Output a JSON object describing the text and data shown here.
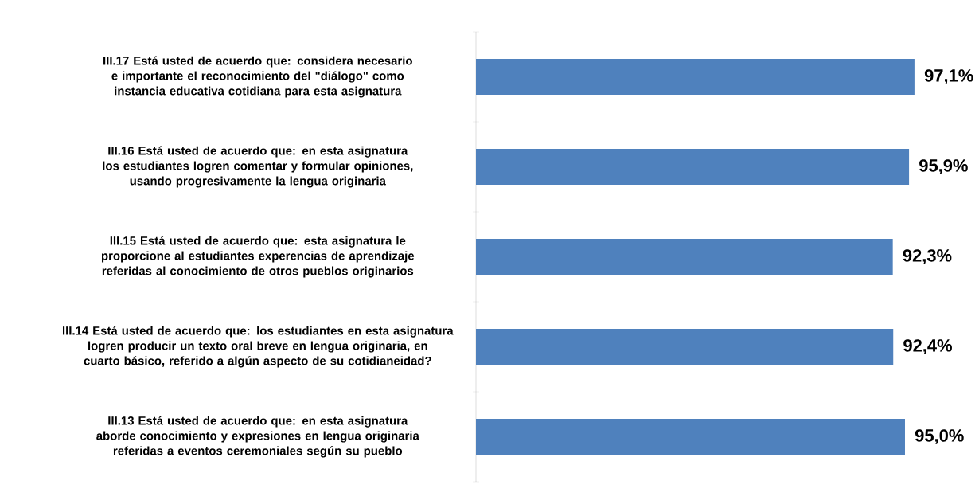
{
  "chart_data": {
    "type": "bar",
    "orientation": "horizontal",
    "categories": [
      "III.17 Está usted de acuerdo que: considera necesario e importante el reconocimiento del \"diálogo\" como instancia educativa cotidiana para esta asignatura",
      "III.16 Está usted de acuerdo que: en esta asignatura los estudiantes logren comentar y formular opiniones, usando progresivamente la lengua originaria",
      "III.15 Está usted de acuerdo que: esta asignatura le proporcione al estudiantes experencias de aprendizaje referidas al conocimiento de otros pueblos originarios",
      "III.14 Está usted de acuerdo que: los estudiantes en esta asignatura logren producir un texto oral breve en lengua originaria, en cuarto básico, referido a algún aspecto de su cotidianeidad?",
      "III.13 Está usted de acuerdo que: en esta asignatura aborde conocimiento y expresiones en lengua originaria referidas a eventos ceremoniales según su pueblo"
    ],
    "values": [
      97.1,
      95.9,
      92.3,
      92.4,
      95.0
    ],
    "value_labels": [
      "97,1%",
      "95,9%",
      "92,3%",
      "92,4%",
      "95,0%"
    ],
    "color": "#4f81bd"
  }
}
